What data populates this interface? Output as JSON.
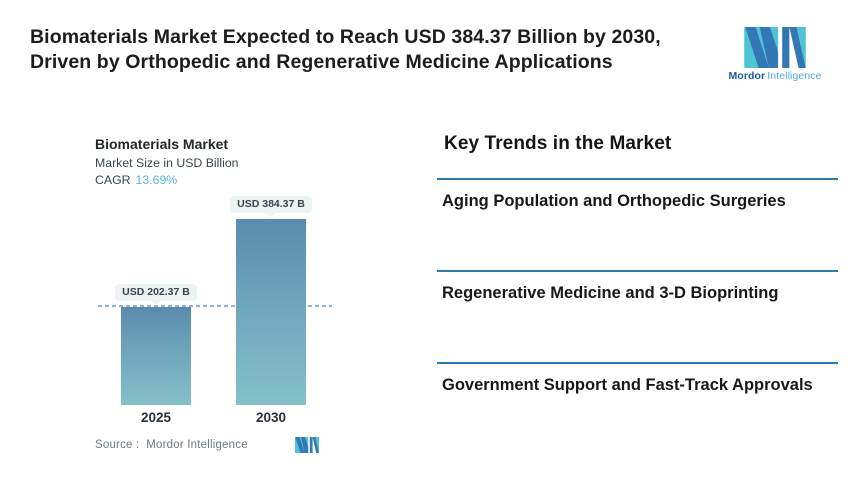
{
  "header": {
    "title_line1": "Biomaterials Market Expected to Reach USD 384.37 Billion by 2030,",
    "title_line2": "Driven by Orthopedic and Regenerative Medicine Applications",
    "logo": {
      "brand_bold": "Mordor",
      "brand_light": "Intelligence"
    }
  },
  "chart": {
    "title": "Biomaterials Market",
    "subtitle": "Market Size in USD Billion",
    "cagr_label": "CAGR",
    "cagr_value": "13.69%",
    "source": "Source :  Mordor Intelligence"
  },
  "chart_data": {
    "type": "bar",
    "title": "Biomaterials Market",
    "subtitle": "Market Size in USD Billion",
    "ylabel": "Market Size in USD Billion",
    "xlabel": "",
    "categories": [
      "2025",
      "2030"
    ],
    "values": [
      202.37,
      384.37
    ],
    "value_labels": [
      "USD 202.37 B",
      "USD 384.37 B"
    ],
    "cagr_percent": 13.69,
    "ylim": [
      0,
      384.37
    ],
    "grid": false,
    "legend": false,
    "annotations": [
      "dashed horizontal reference line at 2025 value (USD 202.37 B)"
    ],
    "source": "Mordor Intelligence"
  },
  "trends": {
    "heading": "Key Trends in the Market",
    "items": [
      {
        "label": "Aging Population and Orthopedic Surgeries"
      },
      {
        "label": "Regenerative Medicine and 3-D Bioprinting"
      },
      {
        "label": "Government Support and Fast-Track Approvals"
      }
    ]
  },
  "colors": {
    "accent_teal": "#4FC4D4",
    "logo_blue": "#3377B5",
    "brand_text_dark": "#1B5A9B",
    "brand_text_light": "#53A7D8",
    "bar_gradient_top": "#5B8AAD",
    "bar_gradient_bottom": "#84C1C9",
    "trend_rule_blue": "#2E7CAD",
    "cagr_value_blue": "#5BB5D9",
    "dashed_line_blue": "#8CB2CD",
    "pill_background": "#EDF2F3"
  }
}
